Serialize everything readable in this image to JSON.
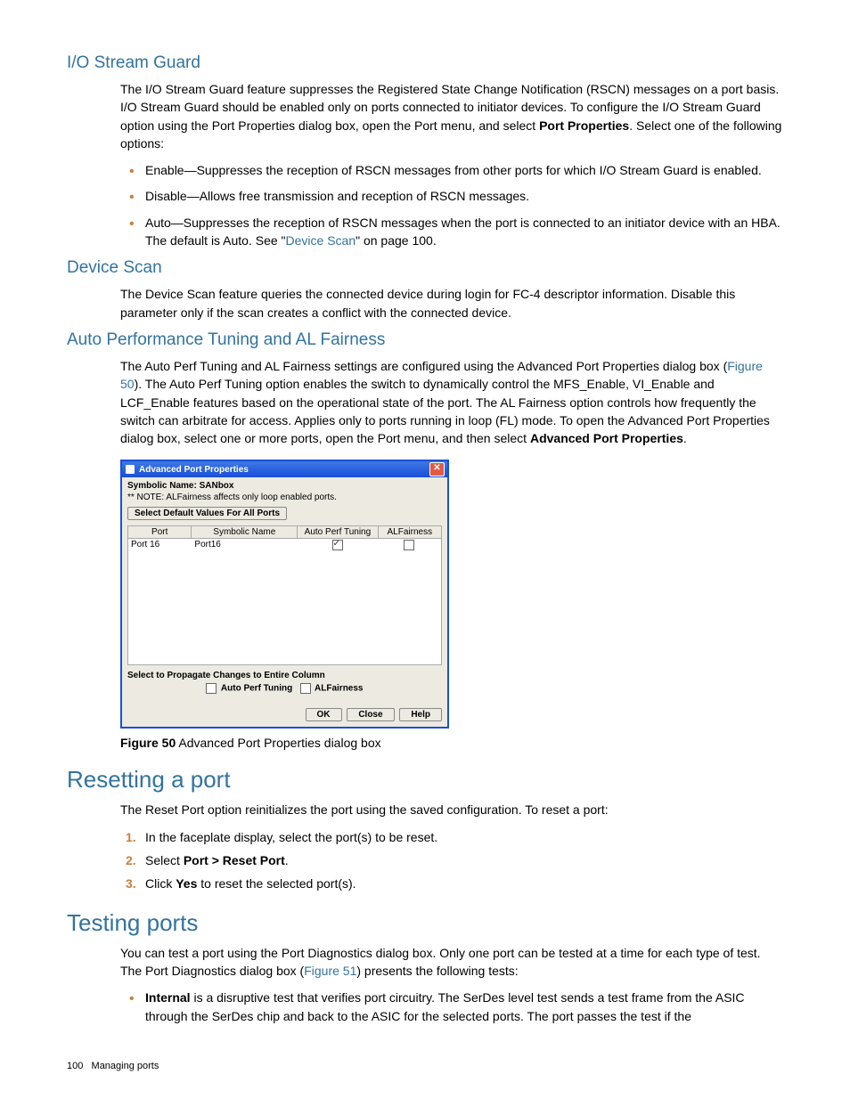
{
  "sections": {
    "ioStream": {
      "title": "I/O Stream Guard",
      "intro_pre": "The I/O Stream Guard feature suppresses the Registered State Change Notification (RSCN) messages on a port basis. I/O Stream Guard should be enabled only on ports connected to initiator devices. To configure the I/O Stream Guard option using the Port Properties dialog box, open the Port menu, and select ",
      "intro_bold": "Port Properties",
      "intro_post": ". Select one of the following options:",
      "bullets": [
        {
          "text": "Enable—Suppresses the reception of RSCN messages from other ports for which I/O Stream Guard is enabled."
        },
        {
          "text": "Disable—Allows free transmission and reception of RSCN messages."
        },
        {
          "pre": "Auto—Suppresses the reception of RSCN messages when the port is connected to an initiator device with an HBA. The default is Auto. See \"",
          "link": "Device Scan",
          "post": "\" on page 100."
        }
      ]
    },
    "deviceScan": {
      "title": "Device Scan",
      "text": "The Device Scan feature queries the connected device during login for FC-4 descriptor information. Disable this parameter only if the scan creates a conflict with the connected device."
    },
    "autoPerf": {
      "title": "Auto Performance Tuning and AL Fairness",
      "pre": "The Auto Perf Tuning and AL Fairness settings are configured using the Advanced Port Properties dialog box (",
      "figref": "Figure 50",
      "post": "). The Auto Perf Tuning option enables the switch to dynamically control the MFS_Enable, VI_Enable and LCF_Enable features based on the operational state of the port. The AL Fairness option controls how frequently the switch can arbitrate for access. Applies only to ports running in loop (FL) mode. To open the Advanced Port Properties dialog box, select one or more ports, open the Port menu, and then select ",
      "post_bold": "Advanced Port Properties",
      "post_end": "."
    },
    "figure": {
      "caption_bold": "Figure 50",
      "caption_rest": "  Advanced Port Properties dialog box"
    },
    "resetting": {
      "title": "Resetting a port",
      "intro": "The Reset Port option reinitializes the port using the saved configuration. To reset a port:",
      "steps": [
        {
          "text": "In the faceplate display, select the port(s) to be reset."
        },
        {
          "pre": "Select ",
          "bold": "Port > Reset Port",
          "post": "."
        },
        {
          "pre": "Click ",
          "bold": "Yes",
          "post": " to reset the selected port(s)."
        }
      ]
    },
    "testing": {
      "title": "Testing ports",
      "pre": "You can test a port using the Port Diagnostics dialog box. Only one port can be tested at a time for each type of test. The Port Diagnostics dialog box (",
      "figref": "Figure 51",
      "post": ") presents the following tests:",
      "bullet_bold": "Internal",
      "bullet_rest": " is a disruptive test that verifies port circuitry. The SerDes level test sends a test frame from the ASIC through the SerDes chip and back to the ASIC for the selected ports. The port passes the test if the"
    }
  },
  "dialog": {
    "title": "Advanced Port Properties",
    "sym_label": "Symbolic Name: SANbox",
    "note": "** NOTE: ALFairness affects only loop enabled ports.",
    "defaults_btn": "Select Default Values For All Ports",
    "columns": [
      "Port",
      "Symbolic Name",
      "Auto Perf Tuning",
      "ALFairness"
    ],
    "row": {
      "port": "Port 16",
      "sym": "Port16",
      "apt_checked": true,
      "alf_checked": false
    },
    "propagate_label": "Select to Propagate Changes to Entire Column",
    "prop_apt": "Auto Perf Tuning",
    "prop_alf": "ALFairness",
    "buttons": {
      "ok": "OK",
      "close": "Close",
      "help": "Help"
    }
  },
  "footer": {
    "page": "100",
    "section": "Managing ports"
  }
}
